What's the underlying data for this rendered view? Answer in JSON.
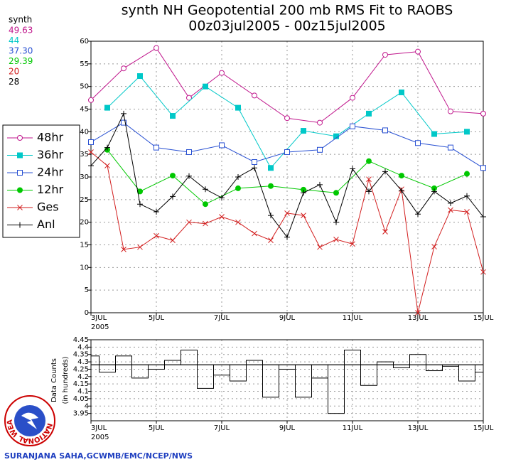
{
  "chart_data": [
    {
      "type": "line",
      "title": "synth NH Geopotential 200 mb RMS Fit to RAOBS",
      "subtitle": "00z03jul2005 - 00z15jul2005",
      "stats_title": "synth",
      "stats": [
        "49.63",
        "44",
        "37.30",
        "29.39",
        "20",
        "28"
      ],
      "xlim": [
        3,
        15
      ],
      "xticks": [
        {
          "value": 3,
          "label": "3JUL"
        },
        {
          "value": 5,
          "label": "5JUL"
        },
        {
          "value": 7,
          "label": "7JUL"
        },
        {
          "value": 9,
          "label": "9JUL"
        },
        {
          "value": 11,
          "label": "11JUL"
        },
        {
          "value": 13,
          "label": "13JUL"
        },
        {
          "value": 15,
          "label": "15JUL"
        }
      ],
      "x_year": "2005",
      "ylim": [
        0,
        60
      ],
      "yticks": [
        0,
        5,
        10,
        15,
        20,
        25,
        30,
        35,
        40,
        45,
        50,
        55,
        60
      ],
      "grid": true,
      "series": [
        {
          "name": "48hr",
          "color": "#c0168c",
          "marker": "circle-open",
          "x": [
            3,
            4,
            5,
            6,
            7,
            8,
            9,
            10,
            11,
            12,
            13,
            14,
            15
          ],
          "values": [
            47,
            54,
            58.5,
            47.5,
            53,
            48,
            43,
            42,
            47.5,
            57,
            57.7,
            44.5,
            44
          ]
        },
        {
          "name": "36hr",
          "color": "#00c8c8",
          "marker": "square-filled",
          "x": [
            3.5,
            4.5,
            5.5,
            6.5,
            7.5,
            8.5,
            9.5,
            10.5,
            11.5,
            12.5,
            13.5,
            14.5
          ],
          "values": [
            45.3,
            52.3,
            43.5,
            50,
            45.3,
            32,
            40.2,
            39,
            44,
            48.7,
            39.5,
            40
          ]
        },
        {
          "name": "24hr",
          "color": "#2850d2",
          "marker": "square-open",
          "x": [
            3,
            4,
            5,
            6,
            7,
            8,
            9,
            10,
            11,
            12,
            13,
            14,
            15
          ],
          "values": [
            37.7,
            42,
            36.5,
            35.5,
            37,
            33.3,
            35.5,
            36,
            41.2,
            40.3,
            37.5,
            36.5,
            32
          ]
        },
        {
          "name": "12hr",
          "color": "#00c800",
          "marker": "circle-filled",
          "x": [
            3.5,
            4.5,
            5.5,
            6.5,
            7.5,
            8.5,
            9.5,
            10.5,
            11.5,
            12.5,
            13.5,
            14.5
          ],
          "values": [
            36,
            26.8,
            30.3,
            24,
            27.5,
            28,
            27.2,
            26.5,
            33.5,
            30.3,
            27.5,
            30.7
          ]
        },
        {
          "name": "Ges",
          "color": "#d21e1e",
          "marker": "x",
          "x": [
            3,
            3.5,
            4,
            4.5,
            5,
            5.5,
            6,
            6.5,
            7,
            7.5,
            8,
            8.5,
            9,
            9.5,
            10,
            10.5,
            11,
            11.5,
            12,
            12.5,
            13,
            13.5,
            14,
            14.5,
            15
          ],
          "values": [
            35.5,
            32.5,
            14,
            14.5,
            17,
            16,
            20,
            19.7,
            21.2,
            20,
            17.5,
            16,
            22,
            21.5,
            14.5,
            16.2,
            15.2,
            29.5,
            17.9,
            27.3,
            0,
            14.6,
            22.7,
            22.3,
            9
          ]
        },
        {
          "name": "Anl",
          "color": "#000000",
          "marker": "plus",
          "x": [
            3,
            3.5,
            4,
            4.5,
            5,
            5.5,
            6,
            6.5,
            7,
            7.5,
            8,
            8.5,
            9,
            9.5,
            10,
            10.5,
            11,
            11.5,
            12,
            12.5,
            13,
            13.5,
            14,
            14.5,
            15
          ],
          "values": [
            32.5,
            36.5,
            44,
            24,
            22.3,
            25.7,
            30.2,
            27.3,
            25.4,
            30,
            32,
            21.5,
            16.7,
            26.5,
            28.3,
            20,
            31.8,
            26.8,
            31.2,
            27,
            21.8,
            26.8,
            24.2,
            25.8,
            21.2
          ]
        }
      ]
    },
    {
      "type": "step",
      "ylabel": "Data Counts",
      "ylabel2": "(in hundreds)",
      "xlim": [
        3,
        15
      ],
      "xticks": [
        {
          "value": 3,
          "label": "3JUL"
        },
        {
          "value": 5,
          "label": "5JUL"
        },
        {
          "value": 7,
          "label": "7JUL"
        },
        {
          "value": 9,
          "label": "9JUL"
        },
        {
          "value": 11,
          "label": "11JUL"
        },
        {
          "value": 13,
          "label": "13JUL"
        },
        {
          "value": 15,
          "label": "15JUL"
        }
      ],
      "x_year": "2005",
      "ylim": [
        3.9,
        4.45
      ],
      "yticks": [
        3.95,
        4,
        4.05,
        4.1,
        4.15,
        4.2,
        4.25,
        4.3,
        4.35,
        4.4,
        4.45
      ],
      "grid": true,
      "reference": 4.28,
      "color": "#000000",
      "x": [
        3,
        3.5,
        4,
        4.5,
        5,
        5.5,
        6,
        6.5,
        7,
        7.5,
        8,
        8.5,
        9,
        9.5,
        10,
        10.5,
        11,
        11.5,
        12,
        12.5,
        13,
        13.5,
        14,
        14.5,
        15
      ],
      "values": [
        4.34,
        4.23,
        4.34,
        4.19,
        4.25,
        4.31,
        4.38,
        4.12,
        4.21,
        4.17,
        4.31,
        4.06,
        4.25,
        4.06,
        4.19,
        3.95,
        4.38,
        4.14,
        4.3,
        4.26,
        4.35,
        4.24,
        4.27,
        4.17,
        4.23
      ]
    }
  ],
  "logo_text": "NATIONAL WEATHER SERVICE",
  "footer": "SURANJANA SAHA,GCWMB/EMC/NCEP/NWS"
}
